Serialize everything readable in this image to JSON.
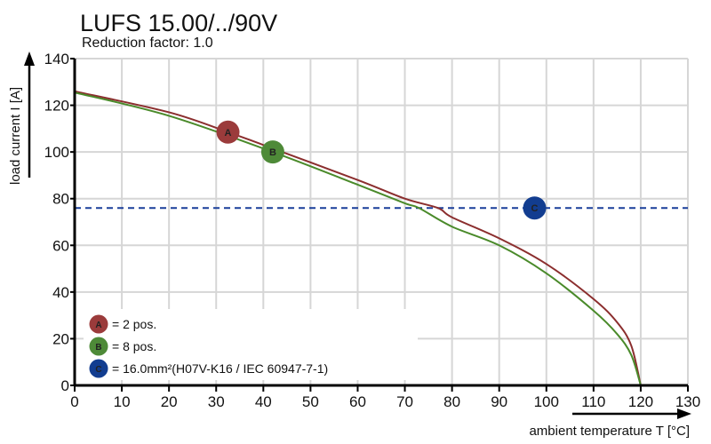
{
  "chart_data": {
    "type": "line",
    "title": "LUFS 15.00/../90V",
    "subtitle": "Reduction factor: 1.0",
    "xlabel": "ambient temperature T [°C]",
    "ylabel": "load current I [A]",
    "xlim": [
      0,
      130
    ],
    "ylim": [
      0,
      140
    ],
    "xticks": [
      0,
      10,
      20,
      30,
      40,
      50,
      60,
      70,
      80,
      90,
      100,
      110,
      120,
      130
    ],
    "yticks": [
      0,
      20,
      40,
      60,
      80,
      100,
      120,
      140
    ],
    "grid": true,
    "legend_position": "bottom-left",
    "series": [
      {
        "marker": "A",
        "color": "#8b2e2e",
        "x": [
          0,
          20,
          32.5,
          40,
          60,
          70,
          77,
          80,
          90,
          100,
          110,
          115,
          118,
          120
        ],
        "y": [
          126,
          117,
          108.5,
          103,
          88,
          80,
          76,
          72,
          63,
          52,
          37,
          27,
          17,
          0
        ]
      },
      {
        "marker": "B",
        "color": "#4a8a2a",
        "x": [
          0,
          20,
          42,
          60,
          70,
          73,
          80,
          90,
          100,
          110,
          115,
          118,
          120
        ],
        "y": [
          125.5,
          115.5,
          100,
          86,
          78,
          76,
          68,
          60,
          48,
          32,
          22,
          13,
          0
        ]
      }
    ],
    "reference_lines": [
      {
        "marker": "C",
        "color": "#1a3f9a",
        "y": 76,
        "style": "dashed"
      }
    ],
    "markers": [
      {
        "label": "A",
        "x": 32.5,
        "y": 108.5,
        "color": "#9b3b3b"
      },
      {
        "label": "B",
        "x": 42,
        "y": 100,
        "color": "#4e8a38"
      },
      {
        "label": "C",
        "x": 97.5,
        "y": 76,
        "color": "#123d90"
      }
    ],
    "legend": [
      {
        "label": "A",
        "text": "= 2 pos.",
        "color": "#9b3b3b"
      },
      {
        "label": "B",
        "text": "= 8 pos.",
        "color": "#4e8a38"
      },
      {
        "label": "C",
        "text": "= 16.0mm²(H07V-K16 / IEC 60947-7-1)",
        "color": "#123d90"
      }
    ]
  }
}
